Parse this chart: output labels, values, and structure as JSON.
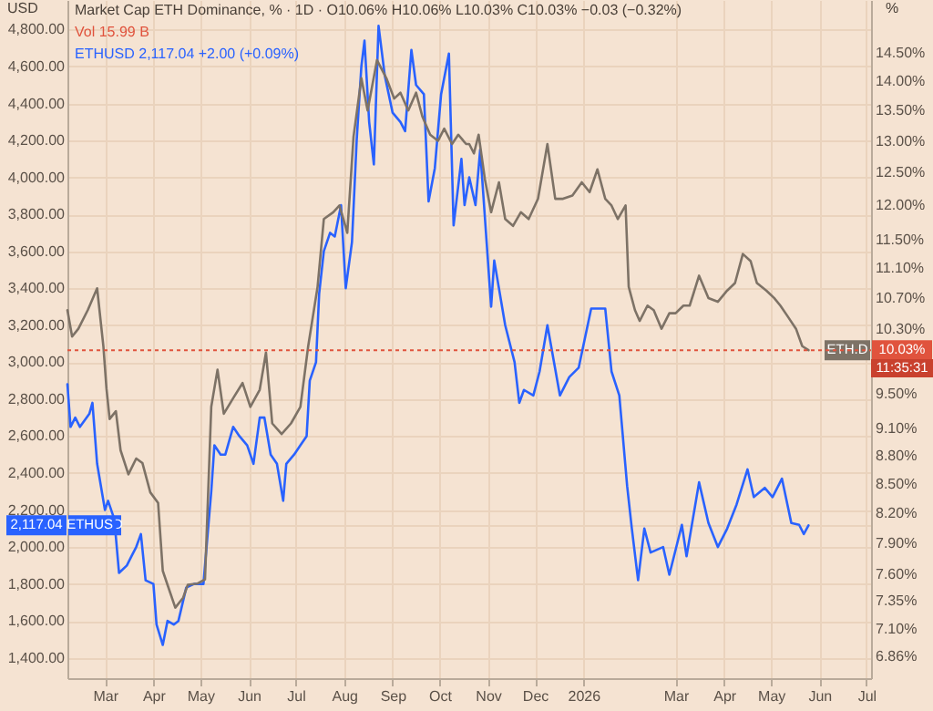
{
  "chart_data": {
    "type": "line",
    "title": "Market Cap ETH Dominance, % · 1D · O10.06% H10.06% L10.03% C10.03% −0.03 (−0.32%)",
    "subtitle": "Vol 15.99 B",
    "ylabel": "USD",
    "y2label": "%",
    "annotations": [
      "ETHUSD 2,117.04 +2.00 (+0.09%)",
      "11:35:31"
    ],
    "xlim": [
      "2025-02-05",
      "2026-07-04"
    ],
    "xticks": [
      {
        "value": "2025-03-01",
        "label": "Mar"
      },
      {
        "value": "2025-04-01",
        "label": "Apr"
      },
      {
        "value": "2025-05-01",
        "label": "May"
      },
      {
        "value": "2025-06-01",
        "label": "Jun"
      },
      {
        "value": "2025-07-01",
        "label": "Jul"
      },
      {
        "value": "2025-08-01",
        "label": "Aug"
      },
      {
        "value": "2025-09-01",
        "label": "Sep"
      },
      {
        "value": "2025-10-01",
        "label": "Oct"
      },
      {
        "value": "2025-11-01",
        "label": "Nov"
      },
      {
        "value": "2025-12-01",
        "label": "Dec"
      },
      {
        "value": "2026-01-01",
        "label": "2026"
      },
      {
        "value": "2026-03-01",
        "label": "Mar"
      },
      {
        "value": "2026-04-01",
        "label": "Apr"
      },
      {
        "value": "2026-05-01",
        "label": "May"
      },
      {
        "value": "2026-06-01",
        "label": "Jun"
      },
      {
        "value": "2026-07-01",
        "label": "Jul"
      }
    ],
    "ylim": [
      1290,
      4960
    ],
    "yticks": [
      {
        "value": 2117.04,
        "label": "2,117.04"
      },
      {
        "value": 1400,
        "label": "1,400.00"
      },
      {
        "value": 1600,
        "label": "1,600.00"
      },
      {
        "value": 1800,
        "label": "1,800.00"
      },
      {
        "value": 2000,
        "label": "2,000.00"
      },
      {
        "value": 2200,
        "label": "2,200.00"
      },
      {
        "value": 2400,
        "label": "2,400.00"
      },
      {
        "value": 2600,
        "label": "2,600.00"
      },
      {
        "value": 2800,
        "label": "2,800.00"
      },
      {
        "value": 3000,
        "label": "3,000.00"
      },
      {
        "value": 3200,
        "label": "3,200.00"
      },
      {
        "value": 3400,
        "label": "3,400.00"
      },
      {
        "value": 3600,
        "label": "3,600.00"
      },
      {
        "value": 3800,
        "label": "3,800.00"
      },
      {
        "value": 4000,
        "label": "4,000.00"
      },
      {
        "value": 4200,
        "label": "4,200.00"
      },
      {
        "value": 4400,
        "label": "4,400.00"
      },
      {
        "value": 4600,
        "label": "4,600.00"
      },
      {
        "value": 4800,
        "label": "4,800.00"
      }
    ],
    "y2lim": [
      6.68,
      15.48
    ],
    "y2ticks": [
      {
        "value": 10.03,
        "label": "10.03%"
      },
      {
        "value": 6.86,
        "label": "6.86%"
      },
      {
        "value": 7.1,
        "label": "7.10%"
      },
      {
        "value": 7.35,
        "label": "7.35%"
      },
      {
        "value": 7.6,
        "label": "7.60%"
      },
      {
        "value": 7.9,
        "label": "7.90%"
      },
      {
        "value": 8.2,
        "label": "8.20%"
      },
      {
        "value": 8.5,
        "label": "8.50%"
      },
      {
        "value": 8.8,
        "label": "8.80%"
      },
      {
        "value": 9.1,
        "label": "9.10%"
      },
      {
        "value": 9.5,
        "label": "9.50%"
      },
      {
        "value": 10.3,
        "label": "10.30%"
      },
      {
        "value": 10.7,
        "label": "10.70%"
      },
      {
        "value": 11.1,
        "label": "11.10%"
      },
      {
        "value": 11.5,
        "label": "11.50%"
      },
      {
        "value": 12,
        "label": "12.00%"
      },
      {
        "value": 12.5,
        "label": "12.50%"
      },
      {
        "value": 13,
        "label": "13.00%"
      },
      {
        "value": 13.5,
        "label": "13.50%"
      },
      {
        "value": 14,
        "label": "14.00%"
      },
      {
        "value": 14.5,
        "label": "14.50%"
      }
    ],
    "log": "y2",
    "grid": true,
    "ref_lines": [
      {
        "axis": "y2",
        "value": 10.03,
        "color": "#e0533d",
        "line_style": "dotted"
      }
    ],
    "series": [
      {
        "name": "ETH.D",
        "color": "#7d7266",
        "axis": "y2",
        "x": [
          "2025-02-05",
          "2025-02-08",
          "2025-02-12",
          "2025-02-18",
          "2025-02-24",
          "2025-02-28",
          "2025-03-02",
          "2025-03-04",
          "2025-03-08",
          "2025-03-11",
          "2025-03-16",
          "2025-03-21",
          "2025-03-25",
          "2025-03-30",
          "2025-04-04",
          "2025-04-07",
          "2025-04-10",
          "2025-04-15",
          "2025-04-20",
          "2025-04-23",
          "2025-04-29",
          "2025-05-04",
          "2025-05-08",
          "2025-05-12",
          "2025-05-16",
          "2025-05-22",
          "2025-05-28",
          "2025-06-02",
          "2025-06-08",
          "2025-06-12",
          "2025-06-16",
          "2025-06-22",
          "2025-06-28",
          "2025-07-04",
          "2025-07-09",
          "2025-07-15",
          "2025-07-19",
          "2025-07-25",
          "2025-07-29",
          "2025-08-03",
          "2025-08-07",
          "2025-08-12",
          "2025-08-16",
          "2025-08-22",
          "2025-08-28",
          "2025-09-02",
          "2025-09-06",
          "2025-09-11",
          "2025-09-16",
          "2025-09-20",
          "2025-09-25",
          "2025-09-30",
          "2025-10-04",
          "2025-10-09",
          "2025-10-13",
          "2025-10-18",
          "2025-10-20",
          "2025-10-23",
          "2025-10-26",
          "2025-10-30",
          "2025-11-03",
          "2025-11-08",
          "2025-11-12",
          "2025-11-17",
          "2025-11-22",
          "2025-11-27",
          "2025-12-03",
          "2025-12-09",
          "2025-12-14",
          "2025-12-19",
          "2025-12-25",
          "2025-12-31",
          "2026-01-05",
          "2026-01-10",
          "2026-01-15",
          "2026-01-19",
          "2026-01-23",
          "2026-01-28",
          "2026-01-30",
          "2026-02-03",
          "2026-02-06",
          "2026-02-11",
          "2026-02-15",
          "2026-02-20",
          "2026-02-25",
          "2026-03-01",
          "2026-03-06",
          "2026-03-10",
          "2026-03-16",
          "2026-03-22",
          "2026-03-28",
          "2026-04-03",
          "2026-04-08",
          "2026-04-13",
          "2026-04-18",
          "2026-04-22",
          "2026-04-28",
          "2026-05-03",
          "2026-05-07",
          "2026-05-12",
          "2026-05-17",
          "2026-05-21",
          "2026-05-25"
        ],
        "values": [
          10.54,
          10.2,
          10.3,
          10.54,
          10.83,
          10.08,
          9.56,
          9.21,
          9.3,
          8.86,
          8.6,
          8.77,
          8.72,
          8.41,
          8.3,
          7.63,
          7.5,
          7.29,
          7.38,
          7.5,
          7.51,
          7.55,
          9.35,
          9.79,
          9.27,
          9.45,
          9.63,
          9.35,
          9.55,
          10.0,
          9.16,
          9.04,
          9.16,
          9.35,
          10.08,
          10.85,
          11.8,
          11.9,
          12.0,
          11.6,
          13.07,
          14.05,
          13.5,
          14.37,
          14.05,
          13.7,
          13.8,
          13.5,
          13.8,
          13.4,
          13.1,
          13.0,
          13.2,
          12.95,
          13.1,
          12.95,
          12.95,
          12.8,
          13.1,
          12.4,
          11.9,
          12.35,
          11.8,
          11.7,
          11.9,
          11.8,
          12.1,
          12.95,
          12.1,
          12.1,
          12.15,
          12.35,
          12.2,
          12.55,
          12.1,
          12.0,
          11.8,
          12.0,
          10.85,
          10.54,
          10.4,
          10.6,
          10.54,
          10.3,
          10.5,
          10.5,
          10.6,
          10.6,
          11.0,
          10.7,
          10.65,
          10.8,
          10.9,
          11.3,
          11.2,
          10.9,
          10.8,
          10.7,
          10.6,
          10.45,
          10.3,
          10.08,
          10.03
        ]
      },
      {
        "name": "ETHUSD",
        "color": "#2962ff",
        "x": [
          "2025-02-05",
          "2025-02-07",
          "2025-02-10",
          "2025-02-13",
          "2025-02-19",
          "2025-02-21",
          "2025-02-24",
          "2025-03-01",
          "2025-03-03",
          "2025-03-07",
          "2025-03-10",
          "2025-03-15",
          "2025-03-18",
          "2025-03-21",
          "2025-03-24",
          "2025-03-27",
          "2025-04-01",
          "2025-04-03",
          "2025-04-07",
          "2025-04-10",
          "2025-04-14",
          "2025-04-17",
          "2025-04-22",
          "2025-04-27",
          "2025-05-03",
          "2025-05-08",
          "2025-05-10",
          "2025-05-14",
          "2025-05-17",
          "2025-05-22",
          "2025-05-26",
          "2025-05-31",
          "2025-06-04",
          "2025-06-08",
          "2025-06-11",
          "2025-06-15",
          "2025-06-19",
          "2025-06-23",
          "2025-06-25",
          "2025-06-30",
          "2025-07-04",
          "2025-07-08",
          "2025-07-10",
          "2025-07-14",
          "2025-07-16",
          "2025-07-19",
          "2025-07-23",
          "2025-07-26",
          "2025-07-30",
          "2025-08-02",
          "2025-08-06",
          "2025-08-09",
          "2025-08-12",
          "2025-08-14",
          "2025-08-17",
          "2025-08-20",
          "2025-08-23",
          "2025-08-27",
          "2025-09-01",
          "2025-09-06",
          "2025-09-09",
          "2025-09-13",
          "2025-09-16",
          "2025-09-21",
          "2025-09-24",
          "2025-09-28",
          "2025-10-02",
          "2025-10-07",
          "2025-10-10",
          "2025-10-15",
          "2025-10-17",
          "2025-10-20",
          "2025-10-24",
          "2025-10-27",
          "2025-11-03",
          "2025-11-05",
          "2025-11-08",
          "2025-11-12",
          "2025-11-18",
          "2025-11-21",
          "2025-11-24",
          "2025-11-30",
          "2025-12-04",
          "2025-12-09",
          "2025-12-17",
          "2025-12-23",
          "2025-12-29",
          "2026-01-06",
          "2026-01-15",
          "2026-01-19",
          "2026-01-24",
          "2026-01-29",
          "2026-02-01",
          "2026-02-05",
          "2026-02-09",
          "2026-02-13",
          "2026-02-21",
          "2026-02-25",
          "2026-03-05",
          "2026-03-08",
          "2026-03-16",
          "2026-03-22",
          "2026-03-28",
          "2026-04-03",
          "2026-04-09",
          "2026-04-16",
          "2026-04-20",
          "2026-04-27",
          "2026-05-02",
          "2026-05-08",
          "2026-05-14",
          "2026-05-19",
          "2026-05-22",
          "2026-05-25"
        ],
        "values": [
          2880,
          2650,
          2700,
          2650,
          2720,
          2780,
          2450,
          2200,
          2250,
          2150,
          1860,
          1900,
          1950,
          2000,
          2070,
          1820,
          1800,
          1580,
          1470,
          1600,
          1580,
          1600,
          1780,
          1800,
          1800,
          2300,
          2550,
          2500,
          2500,
          2650,
          2600,
          2550,
          2450,
          2700,
          2700,
          2500,
          2450,
          2250,
          2450,
          2500,
          2550,
          2600,
          2900,
          3000,
          3370,
          3600,
          3700,
          3680,
          3850,
          3400,
          3650,
          4200,
          4600,
          4740,
          4300,
          4070,
          4820,
          4550,
          4350,
          4300,
          4250,
          4690,
          4500,
          4450,
          3870,
          4050,
          4450,
          4670,
          3740,
          4100,
          3850,
          4000,
          3850,
          4150,
          3300,
          3550,
          3400,
          3200,
          3000,
          2780,
          2850,
          2820,
          2950,
          3200,
          2820,
          2920,
          2970,
          3290,
          3290,
          2950,
          2820,
          2330,
          2100,
          1820,
          2100,
          1970,
          2000,
          1850,
          2120,
          1950,
          2350,
          2130,
          2000,
          2100,
          2230,
          2420,
          2270,
          2320,
          2270,
          2370,
          2130,
          2120,
          2070,
          2117.04
        ]
      }
    ]
  }
}
